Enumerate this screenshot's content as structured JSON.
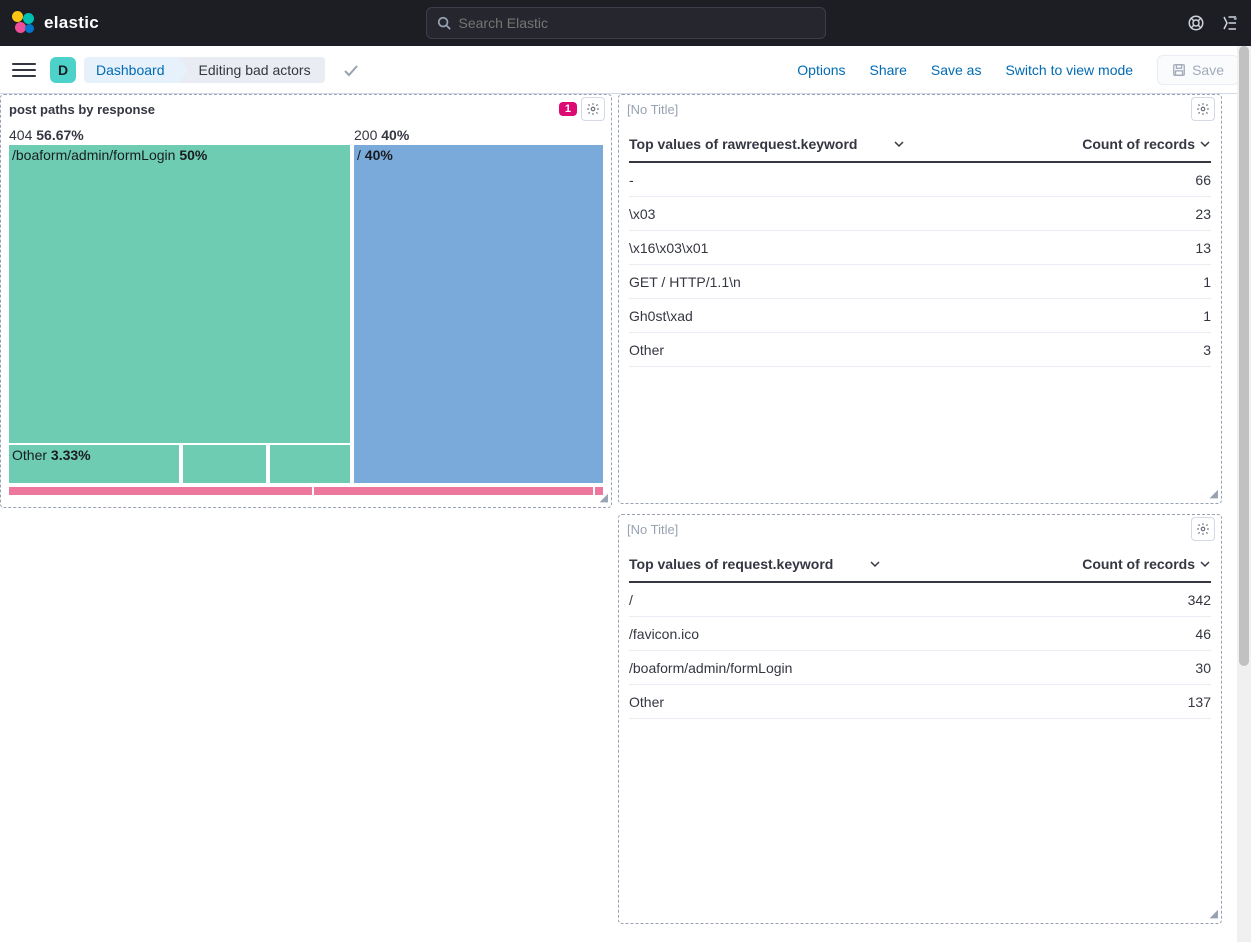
{
  "brand": "elastic",
  "search_placeholder": "Search Elastic",
  "space_letter": "D",
  "breadcrumbs": {
    "dashboard": "Dashboard",
    "editing": "Editing bad actors"
  },
  "toolbar": {
    "options": "Options",
    "share": "Share",
    "save_as": "Save as",
    "switch_view": "Switch to view mode",
    "save": "Save"
  },
  "panel1": {
    "title": "post paths by response",
    "badge": "1",
    "treemap": {
      "col404": {
        "header_code": "404",
        "header_pct": "56.67%",
        "main_label": "/boaform/admin/formLogin",
        "main_pct": "50%",
        "other_label": "Other",
        "other_pct": "3.33%",
        "color": "#6dccb1",
        "width_pct": 56.67
      },
      "col200": {
        "header_code": "200",
        "header_pct": "40%",
        "main_label": "/",
        "main_pct": "40%",
        "color": "#79aad9",
        "width_pct": 40
      },
      "strip_width_other_pct": 3.33,
      "strip_color": "#ee789d"
    }
  },
  "panel2": {
    "title": "[No Title]",
    "table": {
      "col_left": "Top values of rawrequest.keyword",
      "col_right": "Count of records",
      "rows": [
        {
          "k": "-",
          "v": "66"
        },
        {
          "k": "\\x03",
          "v": "23"
        },
        {
          "k": "\\x16\\x03\\x01",
          "v": "13"
        },
        {
          "k": "GET / HTTP/1.1\\n",
          "v": "1"
        },
        {
          "k": "Gh0st\\xad",
          "v": "1"
        },
        {
          "k": "Other",
          "v": "3"
        }
      ]
    }
  },
  "panel3": {
    "title": "[No Title]",
    "table": {
      "col_left": "Top values of request.keyword",
      "col_right": "Count of records",
      "rows": [
        {
          "k": "/",
          "v": "342"
        },
        {
          "k": "/favicon.ico",
          "v": "46"
        },
        {
          "k": "/boaform/admin/formLogin",
          "v": "30"
        },
        {
          "k": "Other",
          "v": "137"
        }
      ]
    }
  },
  "colors": {
    "link": "#006bb4",
    "border_dashed": "#98a2b3"
  }
}
